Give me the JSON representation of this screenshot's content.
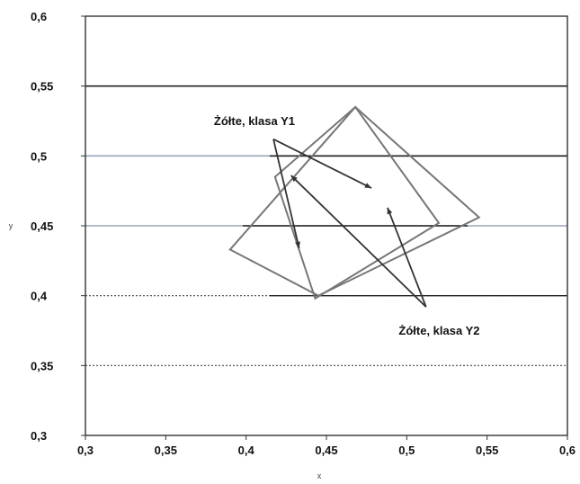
{
  "chart_data": {
    "type": "scatter",
    "title": "",
    "xlabel": "x",
    "ylabel": "y",
    "xlim": [
      0.3,
      0.6
    ],
    "ylim": [
      0.3,
      0.6
    ],
    "x_ticks": [
      "0,3",
      "0,35",
      "0,4",
      "0,45",
      "0,5",
      "0,55",
      "0,6"
    ],
    "y_ticks": [
      "0,3",
      "0,35",
      "0,4",
      "0,45",
      "0,5",
      "0,55",
      "0,6"
    ],
    "grid": "horizontal",
    "series": [
      {
        "label_ref": "Y1",
        "closed": true,
        "points": [
          [
            0.418,
            0.485
          ],
          [
            0.443,
            0.398
          ],
          [
            0.52,
            0.452
          ],
          [
            0.468,
            0.535
          ]
        ]
      },
      {
        "label_ref": "Y2",
        "closed": true,
        "points": [
          [
            0.39,
            0.433
          ],
          [
            0.445,
            0.4
          ],
          [
            0.545,
            0.456
          ],
          [
            0.468,
            0.535
          ]
        ]
      }
    ],
    "annotations": [
      {
        "id": "Y1",
        "text": "Żółte, klasa Y1",
        "text_at": [
          0.38,
          0.522
        ],
        "arrows": [
          {
            "from": [
              0.417,
              0.512
            ],
            "to": [
              0.478,
              0.477
            ]
          },
          {
            "from": [
              0.417,
              0.512
            ],
            "to": [
              0.433,
              0.434
            ]
          }
        ]
      },
      {
        "id": "Y2",
        "text": "Żółte, klasa Y2",
        "text_at": [
          0.495,
          0.372
        ],
        "arrows": [
          {
            "from": [
              0.512,
              0.392
            ],
            "to": [
              0.428,
              0.486
            ]
          },
          {
            "from": [
              0.512,
              0.392
            ],
            "to": [
              0.488,
              0.463
            ]
          }
        ]
      }
    ],
    "colors": {
      "series": "#777777",
      "grid_strong": "#222222",
      "grid_dotted": "#444444",
      "grid_light": "#9aa6b8",
      "frame": "#333333",
      "arrow": "#333333"
    }
  }
}
